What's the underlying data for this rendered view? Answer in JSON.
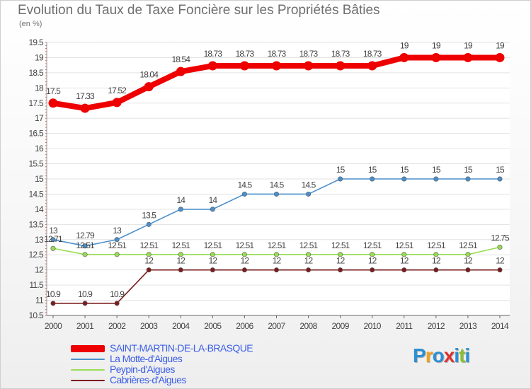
{
  "header": {
    "title": "Evolution du Taux de Taxe Foncière sur les Propriétés Bâties",
    "unit": "(en %)"
  },
  "chart_data": {
    "type": "line",
    "title": "Evolution du Taux de Taxe Foncière sur les Propriétés Bâties",
    "xlabel": "",
    "ylabel": "(en %)",
    "x": [
      "2000",
      "2001",
      "2002",
      "2003",
      "2004",
      "2005",
      "2006",
      "2007",
      "2008",
      "2009",
      "2010",
      "2011",
      "2012",
      "2013",
      "2014"
    ],
    "ylim": [
      10.5,
      19.5
    ],
    "yticks": [
      "10.5",
      "11",
      "11.5",
      "12",
      "12.5",
      "13",
      "13.5",
      "14",
      "14.5",
      "15",
      "15.5",
      "16",
      "16.5",
      "17",
      "17.5",
      "18",
      "18.5",
      "19",
      "19.5"
    ],
    "grid": "horizontal",
    "legend": "bottom-left",
    "series": [
      {
        "name": "SAINT-MARTIN-DE-LA-BRASQUE",
        "color": "#ee0000",
        "values": [
          17.5,
          17.33,
          17.52,
          18.04,
          18.54,
          18.73,
          18.73,
          18.73,
          18.73,
          18.73,
          18.73,
          19,
          19,
          19,
          19
        ],
        "labels": [
          "17.5",
          "17.33",
          "17.52",
          "18.04",
          "18.54",
          "18.73",
          "18.73",
          "18.73",
          "18.73",
          "18.73",
          "18.73",
          "19",
          "19",
          "19",
          "19"
        ]
      },
      {
        "name": "La Motte-d'Aigues",
        "color": "#4a8fcc",
        "values": [
          13,
          12.79,
          13,
          13.5,
          14,
          14,
          14.5,
          14.5,
          14.5,
          15,
          15,
          15,
          15,
          15,
          15
        ],
        "labels": [
          "13",
          "12.79",
          "13",
          "13.5",
          "14",
          "14",
          "14.5",
          "14.5",
          "14.5",
          "15",
          "15",
          "15",
          "15",
          "15",
          "15"
        ]
      },
      {
        "name": "Peypin-d'Aigues",
        "color": "#99dd55",
        "values": [
          12.71,
          12.51,
          12.51,
          12.51,
          12.51,
          12.51,
          12.51,
          12.51,
          12.51,
          12.51,
          12.51,
          12.51,
          12.51,
          12.51,
          12.75
        ],
        "labels": [
          "12.71",
          "12.51",
          "12.51",
          "12.51",
          "12.51",
          "12.51",
          "12.51",
          "12.51",
          "12.51",
          "12.51",
          "12.51",
          "12.51",
          "12.51",
          "12.51",
          "12.75"
        ]
      },
      {
        "name": "Cabrières-d'Aigues",
        "color": "#7a1c1c",
        "values": [
          10.9,
          10.9,
          10.9,
          12,
          12,
          12,
          12,
          12,
          12,
          12,
          12,
          12,
          12,
          12,
          12
        ],
        "labels": [
          "10.9",
          "10.9",
          "10.9",
          "12",
          "12",
          "12",
          "12",
          "12",
          "12",
          "12",
          "12",
          "12",
          "12",
          "12",
          "12"
        ]
      }
    ]
  },
  "logo": {
    "letters": [
      "P",
      "r",
      "o",
      "x",
      "i",
      "t",
      "i"
    ],
    "colors": [
      "#2a8fd6",
      "#f0a020",
      "#2a8fd6",
      "#e03030",
      "#2a8fd6",
      "#88c030",
      "#2a8fd6"
    ]
  }
}
